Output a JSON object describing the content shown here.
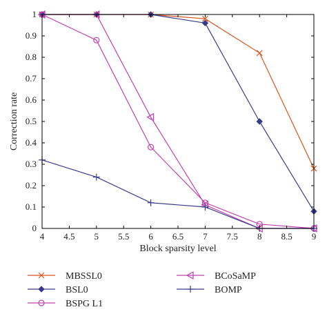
{
  "chart_data": {
    "type": "line",
    "title": "",
    "xlabel": "Block sparsity level",
    "ylabel": "Correction rate",
    "xlim": [
      4,
      9
    ],
    "ylim": [
      0,
      1
    ],
    "xticks": [
      4,
      4.5,
      5,
      5.5,
      6,
      6.5,
      7,
      7.5,
      8,
      8.5,
      9
    ],
    "xtick_labels": [
      "4",
      "4.5",
      "5",
      "5.5",
      "6",
      "6.5",
      "7",
      "7.5",
      "8",
      "8.5",
      "9"
    ],
    "yticks": [
      0,
      0.1,
      0.2,
      0.3,
      0.4,
      0.5,
      0.6,
      0.7,
      0.8,
      0.9,
      1
    ],
    "ytick_labels": [
      "0",
      "0.1",
      "0.2",
      "0.3",
      "0.4",
      "0.5",
      "0.6",
      "0.7",
      "0.8",
      "0.9",
      "1"
    ],
    "grid": false,
    "legend_position": "bottom",
    "series": [
      {
        "name": "MBSSL0",
        "color": "#d9541e",
        "marker": "x",
        "x": [
          4,
          5,
          6,
          7,
          8,
          9
        ],
        "y": [
          1.0,
          1.0,
          1.0,
          0.98,
          0.82,
          0.28
        ]
      },
      {
        "name": "BSL0",
        "color": "#3a3a8c",
        "marker": "diamond",
        "x": [
          4,
          5,
          6,
          7,
          8,
          9
        ],
        "y": [
          1.0,
          1.0,
          1.0,
          0.96,
          0.5,
          0.08
        ]
      },
      {
        "name": "BSPG L1",
        "color": "#c040b0",
        "marker": "circle",
        "x": [
          4,
          5,
          6,
          7,
          8,
          9
        ],
        "y": [
          1.0,
          0.88,
          0.38,
          0.12,
          0.02,
          0.0
        ]
      },
      {
        "name": "BCoSaMP",
        "color": "#c040b0",
        "marker": "triangle-left",
        "x": [
          4,
          5,
          6,
          7,
          8,
          9
        ],
        "y": [
          1.0,
          1.0,
          0.52,
          0.11,
          0.0,
          0.0
        ]
      },
      {
        "name": "BOMP",
        "color": "#3a3a8c",
        "marker": "plus",
        "x": [
          4,
          5,
          6,
          7,
          8,
          9
        ],
        "y": [
          0.32,
          0.24,
          0.12,
          0.1,
          0.0,
          0.0
        ]
      }
    ]
  }
}
